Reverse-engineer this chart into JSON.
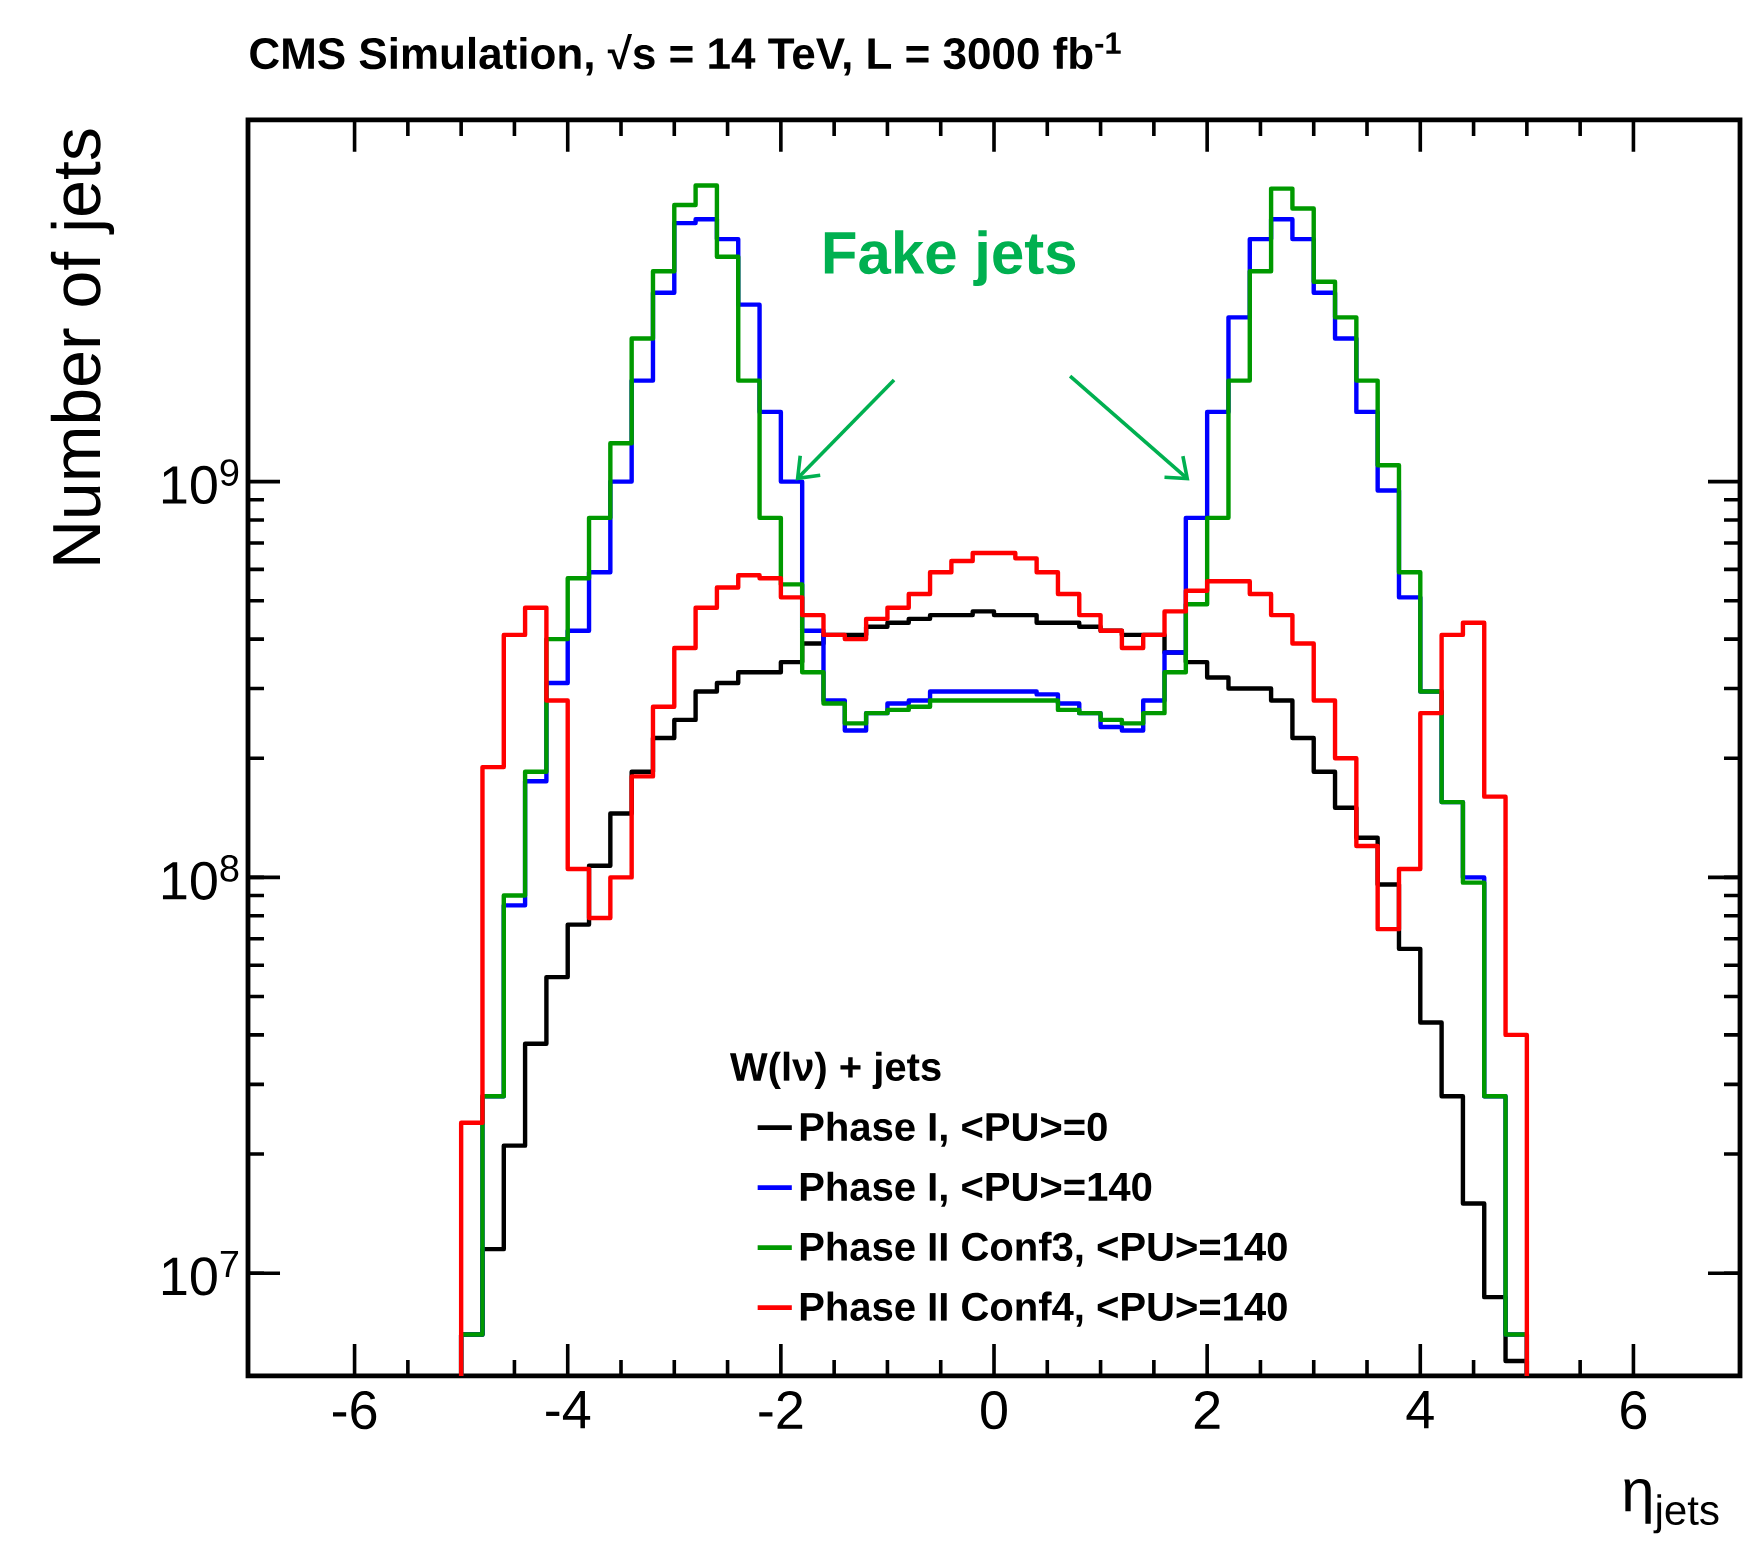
{
  "chart_data": {
    "type": "histogram",
    "title": "CMS Simulation, √s = 14 TeV, L = 3000 fb$^{-1}$",
    "xlabel": "η$_{jets}$",
    "ylabel": "Number of jets",
    "legend_title": "W(lν) + jets",
    "annotations": [
      "Fake jets"
    ],
    "bins": [
      -5.0,
      -4.8,
      -4.6,
      -4.4,
      -4.2,
      -4.0,
      -3.8,
      -3.6,
      -3.4,
      -3.2,
      -3.0,
      -2.8,
      -2.6,
      -2.4,
      -2.2,
      -2.0,
      -1.8,
      -1.6,
      -1.4,
      -1.2,
      -1.0,
      -0.8,
      -0.6,
      -0.4,
      -0.2,
      0.0,
      0.2,
      0.4,
      0.6,
      0.8,
      1.0,
      1.2,
      1.4,
      1.6,
      1.8,
      2.0,
      2.2,
      2.4,
      2.6,
      2.8,
      3.0,
      3.2,
      3.4,
      3.6,
      3.8,
      4.0,
      4.2,
      4.4,
      4.6,
      4.8,
      5.0
    ],
    "series": [
      {
        "name": "Phase I, <PU>=0",
        "color": "#000000",
        "values": [
          7000000.0,
          11500000.0,
          21000000.0,
          38000000.0,
          56000000.0,
          76000000.0,
          107000000.0,
          145000000.0,
          185000000.0,
          225000000.0,
          250000000.0,
          295000000.0,
          310000000.0,
          330000000.0,
          330000000.0,
          350000000.0,
          390000000.0,
          410000000.0,
          410000000.0,
          430000000.0,
          440000000.0,
          450000000.0,
          460000000.0,
          460000000.0,
          470000000.0,
          460000000.0,
          460000000.0,
          440000000.0,
          440000000.0,
          430000000.0,
          420000000.0,
          410000000.0,
          410000000.0,
          370000000.0,
          350000000.0,
          320000000.0,
          300000000.0,
          300000000.0,
          280000000.0,
          225000000.0,
          185000000.0,
          150000000.0,
          126000000.0,
          96000000.0,
          66000000.0,
          43000000.0,
          28000000.0,
          15000000.0,
          8700000.0,
          6000000.0
        ]
      },
      {
        "name": "Phase I, <PU>=140",
        "color": "#0000ff",
        "values": [
          7000000.0,
          28000000.0,
          85000000.0,
          175000000.0,
          310000000.0,
          420000000.0,
          590000000.0,
          1000000000.0,
          1800000000.0,
          3000000000.0,
          4500000000.0,
          4600000000.0,
          4100000000.0,
          2800000000.0,
          1500000000.0,
          1000000000.0,
          420000000.0,
          280000000.0,
          235000000.0,
          260000000.0,
          275000000.0,
          280000000.0,
          295000000.0,
          295000000.0,
          295000000.0,
          295000000.0,
          295000000.0,
          290000000.0,
          275000000.0,
          260000000.0,
          240000000.0,
          235000000.0,
          280000000.0,
          370000000.0,
          810000000.0,
          1500000000.0,
          2600000000.0,
          4100000000.0,
          4600000000.0,
          4100000000.0,
          3000000000.0,
          2300000000.0,
          1500000000.0,
          950000000.0,
          510000000.0,
          295000000.0,
          155000000.0,
          100000000.0,
          28000000.0,
          7000000.0
        ]
      },
      {
        "name": "Phase II Conf3, <PU>=140",
        "color": "#009900",
        "values": [
          7000000.0,
          28000000.0,
          90000000.0,
          185000000.0,
          400000000.0,
          570000000.0,
          810000000.0,
          1250000000.0,
          2300000000.0,
          3400000000.0,
          5000000000.0,
          5600000000.0,
          3700000000.0,
          1800000000.0,
          810000000.0,
          550000000.0,
          330000000.0,
          275000000.0,
          245000000.0,
          260000000.0,
          265000000.0,
          270000000.0,
          280000000.0,
          280000000.0,
          280000000.0,
          280000000.0,
          280000000.0,
          280000000.0,
          265000000.0,
          260000000.0,
          250000000.0,
          245000000.0,
          260000000.0,
          330000000.0,
          490000000.0,
          810000000.0,
          1800000000.0,
          3400000000.0,
          5500000000.0,
          4900000000.0,
          3200000000.0,
          2600000000.0,
          1800000000.0,
          1100000000.0,
          590000000.0,
          295000000.0,
          155000000.0,
          97000000.0,
          28000000.0,
          7000000.0
        ]
      },
      {
        "name": "Phase II Conf4, <PU>=140",
        "color": "#ff0000",
        "values": [
          24000000.0,
          190000000.0,
          410000000.0,
          480000000.0,
          280000000.0,
          105000000.0,
          79000000.0,
          100000000.0,
          180000000.0,
          270000000.0,
          380000000.0,
          480000000.0,
          540000000.0,
          580000000.0,
          570000000.0,
          510000000.0,
          460000000.0,
          410000000.0,
          400000000.0,
          450000000.0,
          480000000.0,
          520000000.0,
          590000000.0,
          630000000.0,
          660000000.0,
          660000000.0,
          640000000.0,
          590000000.0,
          520000000.0,
          460000000.0,
          420000000.0,
          380000000.0,
          410000000.0,
          470000000.0,
          530000000.0,
          560000000.0,
          560000000.0,
          520000000.0,
          460000000.0,
          390000000.0,
          280000000.0,
          200000000.0,
          120000000.0,
          74000000.0,
          105000000.0,
          260000000.0,
          410000000.0,
          440000000.0,
          160000000.0,
          40000000.0
        ]
      }
    ],
    "xlim": [
      -7,
      7
    ],
    "xticks": [
      -6,
      -4,
      -2,
      0,
      2,
      4,
      6
    ],
    "ylim": [
      5500000.0,
      8200000000.0
    ],
    "log": "y",
    "yticks": [
      {
        "value": 10000000.0,
        "label": "10$^{7}$"
      },
      {
        "value": 100000000.0,
        "label": "10$^{8}$"
      },
      {
        "value": 1000000000.0,
        "label": "10$^{9}$"
      }
    ],
    "legend": "bottom"
  }
}
